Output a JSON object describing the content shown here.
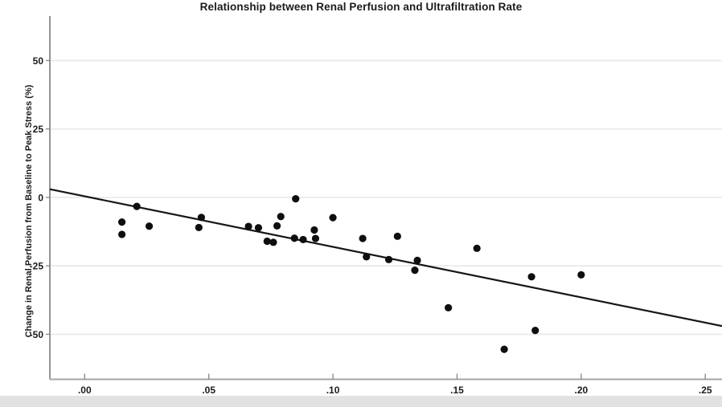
{
  "figure": {
    "title": "Relationship between Renal Perfusion and Ultrafiltration Rate",
    "y_axis_label": "Change in Renal Perfusion from Baseline to Peak Stress (%)"
  },
  "chart_data": {
    "type": "scatter",
    "title": "Relationship between Renal Perfusion and Ultrafiltration Rate",
    "xlabel": "",
    "ylabel": "Change in Renal Perfusion from Baseline to Peak Stress (%)",
    "x_ticks": {
      "labels": [
        ".00",
        ".05",
        ".10",
        ".15",
        ".20",
        ".25"
      ],
      "values": [
        0.0,
        0.05,
        0.1,
        0.15,
        0.2,
        0.25
      ]
    },
    "y_ticks": {
      "labels": [
        "50",
        "25",
        "0",
        "-25",
        "-50"
      ],
      "values": [
        50,
        25,
        0,
        -25,
        -50
      ]
    },
    "xlim": [
      -0.01402,
      0.25672
    ],
    "ylim": [
      -66.45,
      66.25
    ],
    "grid": "horizontal-only",
    "legend": "none",
    "points": [
      [
        0.015,
        -9.0
      ],
      [
        0.015,
        -13.5
      ],
      [
        0.021,
        -3.3
      ],
      [
        0.026,
        -10.5
      ],
      [
        0.046,
        -11.0
      ],
      [
        0.047,
        -7.3
      ],
      [
        0.066,
        -10.6
      ],
      [
        0.07,
        -11.1
      ],
      [
        0.0735,
        -16.0
      ],
      [
        0.076,
        -16.4
      ],
      [
        0.0775,
        -10.4
      ],
      [
        0.079,
        -7.0
      ],
      [
        0.0845,
        -14.9
      ],
      [
        0.085,
        -0.5
      ],
      [
        0.088,
        -15.4
      ],
      [
        0.0925,
        -11.9
      ],
      [
        0.093,
        -15.0
      ],
      [
        0.1,
        -7.4
      ],
      [
        0.112,
        -15.0
      ],
      [
        0.1135,
        -21.7
      ],
      [
        0.1225,
        -22.7
      ],
      [
        0.126,
        -14.2
      ],
      [
        0.133,
        -26.6
      ],
      [
        0.134,
        -23.0
      ],
      [
        0.1465,
        -40.3
      ],
      [
        0.158,
        -18.6
      ],
      [
        0.169,
        -55.5
      ],
      [
        0.18,
        -29.0
      ],
      [
        0.1815,
        -48.6
      ],
      [
        0.2,
        -28.3
      ]
    ],
    "regression_line": {
      "x1": -0.01402,
      "y1": 3.0,
      "x2": 0.25672,
      "y2": -47.0
    },
    "colors": {
      "point": "#0e0e0e",
      "line": "#161616",
      "gridline": "#e8e8e8",
      "axis_y": "#7a7a7a",
      "axis_x": "#a6a6a6",
      "tick": "#8c8c8c",
      "text": "#1b1b1b",
      "footer_strip": "#e2e2e2"
    }
  }
}
